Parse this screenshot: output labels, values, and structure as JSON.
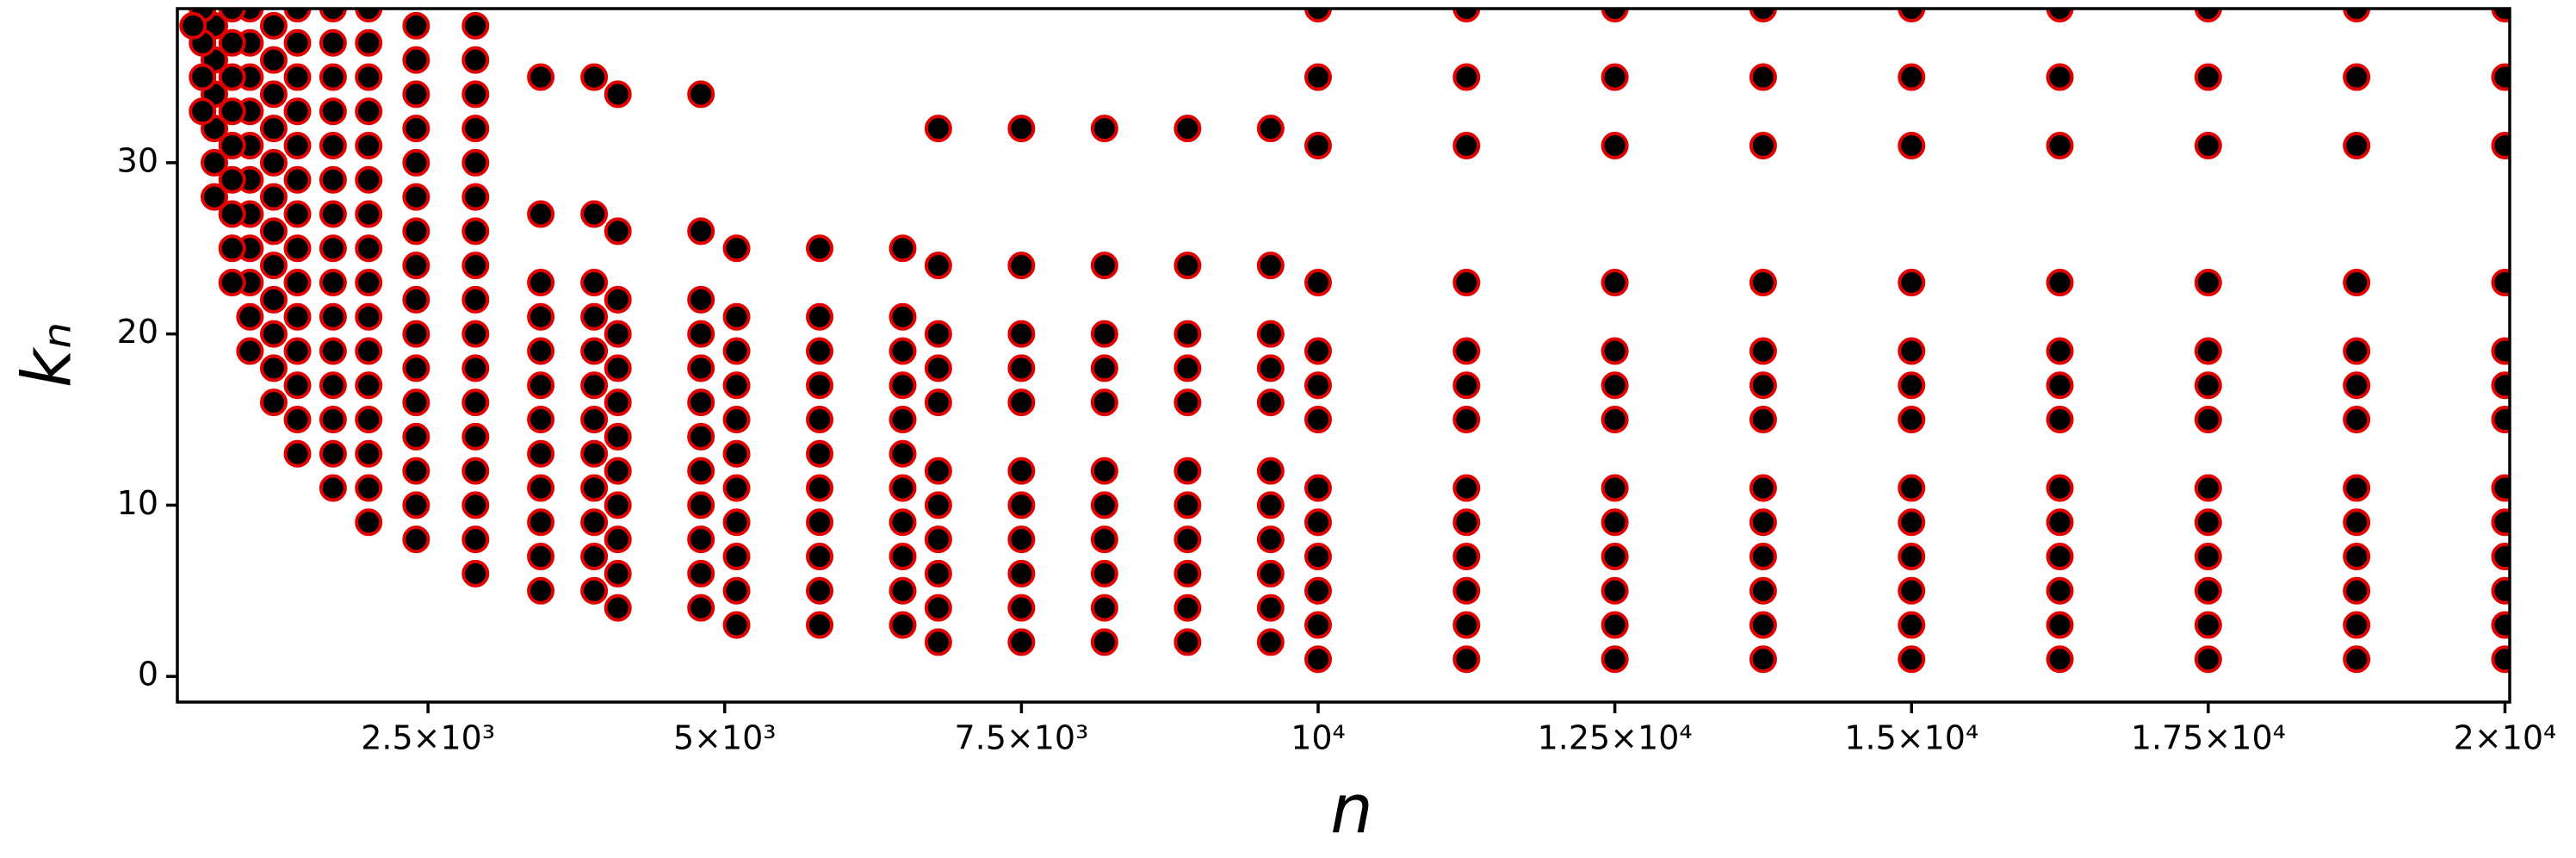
{
  "chart_data": {
    "type": "scatter",
    "xlabel": "n",
    "ylabel": "kₙ",
    "color": "#000000",
    "edgecolor": "#e00000",
    "xlim": [
      388,
      20040
    ],
    "ylim": [
      -1.5,
      39
    ],
    "xticks": [
      {
        "value": 2500,
        "label": "2.5×10³"
      },
      {
        "value": 5000,
        "label": "5×10³"
      },
      {
        "value": 7500,
        "label": "7.5×10³"
      },
      {
        "value": 10000,
        "label": "10⁴"
      },
      {
        "value": 12500,
        "label": "1.25×10⁴"
      },
      {
        "value": 15000,
        "label": "1.5×10⁴"
      },
      {
        "value": 17500,
        "label": "1.75×10⁴"
      },
      {
        "value": 20000,
        "label": "2×10⁴"
      }
    ],
    "yticks": [
      0,
      10,
      20,
      30
    ],
    "x": [
      10000,
      11250,
      12500,
      13750,
      15000,
      16250,
      17500,
      18750,
      20000,
      10000,
      11250,
      12500,
      13750,
      15000,
      16250,
      17500,
      18750,
      20000,
      10000,
      11250,
      12500,
      13750,
      15000,
      16250,
      17500,
      18750,
      20000,
      10000,
      11250,
      12500,
      13750,
      15000,
      16250,
      17500,
      18750,
      20000,
      10000,
      11250,
      12500,
      13750,
      15000,
      16250,
      17500,
      18750,
      20000,
      10000,
      11250,
      12500,
      13750,
      15000,
      16250,
      17500,
      18750,
      20000,
      10000,
      11250,
      12500,
      13750,
      15000,
      16250,
      17500,
      18750,
      20000,
      10000,
      11250,
      12500,
      13750,
      15000,
      16250,
      17500,
      18750,
      20000,
      10000,
      11250,
      12500,
      13750,
      15000,
      16250,
      17500,
      18750,
      20000,
      10000,
      11250,
      12500,
      13750,
      15000,
      16250,
      17500,
      18750,
      20000,
      10000,
      11250,
      12500,
      13750,
      15000,
      16250,
      17500,
      18750,
      20000,
      10000,
      11250,
      12500,
      13750,
      15000,
      16250,
      17500,
      18750,
      20000,
      10000,
      11250,
      12500,
      13750,
      15000,
      16250,
      17500,
      18750,
      20000,
      6800,
      7500,
      8200,
      8900,
      9600,
      6800,
      7500,
      8200,
      8900,
      9600,
      6800,
      7500,
      8200,
      8900,
      9600,
      6800,
      7500,
      8200,
      8900,
      9600,
      6800,
      7500,
      8200,
      8900,
      9600,
      6800,
      7500,
      8200,
      8900,
      9600,
      6800,
      7500,
      8200,
      8900,
      9600,
      6800,
      7500,
      8200,
      8900,
      9600,
      6800,
      7500,
      8200,
      8900,
      9600,
      6800,
      7500,
      8200,
      8900,
      9600,
      6800,
      7500,
      8200,
      8900,
      9600,
      5100,
      5800,
      6500,
      5100,
      5800,
      6500,
      5100,
      5800,
      6500,
      5100,
      5800,
      6500,
      5100,
      5800,
      6500,
      5100,
      5800,
      6500,
      5100,
      5800,
      6500,
      5100,
      5800,
      6500,
      5100,
      5800,
      6500,
      5100,
      5800,
      6500,
      5100,
      5800,
      6500,
      4100,
      4800,
      4100,
      4800,
      4100,
      4800,
      4100,
      4800,
      4100,
      4800,
      4100,
      4800,
      4100,
      4800,
      4100,
      4800,
      4100,
      4800,
      4100,
      4800,
      4100,
      4800,
      4100,
      4800,
      3450,
      3900,
      3450,
      3900,
      3450,
      3900,
      3450,
      3900,
      3450,
      3900,
      3450,
      3900,
      3450,
      3900,
      3450,
      3900,
      3450,
      3900,
      3450,
      3900,
      3450,
      3900,
      3450,
      3900,
      2900,
      2900,
      2900,
      2900,
      2900,
      2900,
      2900,
      2900,
      2900,
      2900,
      2900,
      2900,
      2900,
      2900,
      2900,
      2900,
      2900,
      2400,
      2400,
      2400,
      2400,
      2400,
      2400,
      2400,
      2400,
      2400,
      2400,
      2400,
      2400,
      2400,
      2400,
      2400,
      2400,
      2000,
      2000,
      2000,
      2000,
      2000,
      2000,
      2000,
      2000,
      2000,
      2000,
      2000,
      2000,
      2000,
      2000,
      2000,
      2000,
      1700,
      1700,
      1700,
      1700,
      1700,
      1700,
      1700,
      1700,
      1700,
      1700,
      1700,
      1700,
      1700,
      1700,
      1700,
      1400,
      1400,
      1400,
      1400,
      1400,
      1400,
      1400,
      1400,
      1400,
      1400,
      1400,
      1400,
      1400,
      1400,
      1200,
      1200,
      1200,
      1200,
      1200,
      1200,
      1200,
      1200,
      1200,
      1200,
      1200,
      1200,
      1000,
      1000,
      1000,
      1000,
      1000,
      1000,
      1000,
      1000,
      1000,
      1000,
      1000,
      850,
      850,
      850,
      850,
      850,
      850,
      850,
      850,
      850,
      700,
      700,
      700,
      700,
      700,
      700,
      600,
      600,
      600,
      600,
      520
    ],
    "y": [
      1,
      1,
      1,
      1,
      1,
      1,
      1,
      1,
      1,
      3,
      3,
      3,
      3,
      3,
      3,
      3,
      3,
      3,
      5,
      5,
      5,
      5,
      5,
      5,
      5,
      5,
      5,
      7,
      7,
      7,
      7,
      7,
      7,
      7,
      7,
      7,
      9,
      9,
      9,
      9,
      9,
      9,
      9,
      9,
      9,
      11,
      11,
      11,
      11,
      11,
      11,
      11,
      11,
      11,
      15,
      15,
      15,
      15,
      15,
      15,
      15,
      15,
      15,
      17,
      17,
      17,
      17,
      17,
      17,
      17,
      17,
      17,
      19,
      19,
      19,
      19,
      19,
      19,
      19,
      19,
      19,
      23,
      23,
      23,
      23,
      23,
      23,
      23,
      23,
      23,
      31,
      31,
      31,
      31,
      31,
      31,
      31,
      31,
      31,
      35,
      35,
      35,
      35,
      35,
      35,
      35,
      35,
      35,
      39,
      39,
      39,
      39,
      39,
      39,
      39,
      39,
      39,
      2,
      2,
      2,
      2,
      2,
      4,
      4,
      4,
      4,
      4,
      6,
      6,
      6,
      6,
      6,
      8,
      8,
      8,
      8,
      8,
      10,
      10,
      10,
      10,
      10,
      12,
      12,
      12,
      12,
      12,
      16,
      16,
      16,
      16,
      16,
      18,
      18,
      18,
      18,
      18,
      20,
      20,
      20,
      20,
      20,
      24,
      24,
      24,
      24,
      24,
      32,
      32,
      32,
      32,
      32,
      3,
      3,
      3,
      5,
      5,
      5,
      7,
      7,
      7,
      9,
      9,
      9,
      11,
      11,
      11,
      13,
      13,
      13,
      15,
      15,
      15,
      17,
      17,
      17,
      19,
      19,
      19,
      21,
      21,
      21,
      25,
      25,
      25,
      4,
      4,
      6,
      6,
      8,
      8,
      10,
      10,
      12,
      12,
      14,
      14,
      16,
      16,
      18,
      18,
      20,
      20,
      22,
      22,
      26,
      26,
      34,
      34,
      5,
      5,
      7,
      7,
      9,
      9,
      11,
      11,
      13,
      13,
      15,
      15,
      17,
      17,
      19,
      19,
      21,
      21,
      23,
      23,
      27,
      27,
      35,
      35,
      6,
      8,
      10,
      12,
      14,
      16,
      18,
      20,
      22,
      24,
      26,
      28,
      30,
      32,
      34,
      36,
      38,
      8,
      10,
      12,
      14,
      16,
      18,
      20,
      22,
      24,
      26,
      28,
      30,
      32,
      34,
      36,
      38,
      9,
      11,
      13,
      15,
      17,
      19,
      21,
      23,
      25,
      27,
      29,
      31,
      33,
      35,
      37,
      39,
      11,
      13,
      15,
      17,
      19,
      21,
      23,
      25,
      27,
      29,
      31,
      33,
      35,
      37,
      39,
      13,
      15,
      17,
      19,
      21,
      23,
      25,
      27,
      29,
      31,
      33,
      35,
      37,
      39,
      16,
      18,
      20,
      22,
      24,
      26,
      28,
      30,
      32,
      34,
      36,
      38,
      19,
      21,
      23,
      25,
      27,
      29,
      31,
      33,
      35,
      37,
      39,
      23,
      25,
      27,
      29,
      31,
      33,
      35,
      37,
      39,
      28,
      30,
      32,
      34,
      36,
      38,
      33,
      35,
      37,
      39,
      38
    ]
  }
}
